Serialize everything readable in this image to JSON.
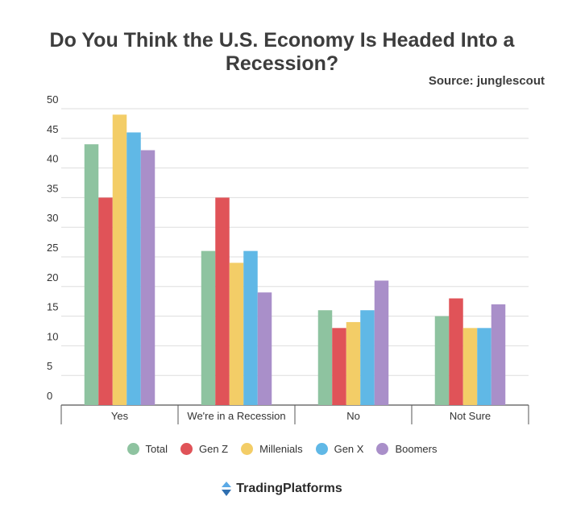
{
  "title": "Do You Think the U.S. Economy Is Headed Into a Recession?",
  "source": "Source: junglescout",
  "brand": {
    "name": "TradingPlatforms",
    "icon": "tradingplatforms-logo-icon"
  },
  "chart_data": {
    "type": "bar",
    "title": "Do You Think the U.S. Economy Is Headed Into a Recession?",
    "xlabel": "",
    "ylabel": "",
    "ylim": [
      0,
      50
    ],
    "yticks": [
      0,
      5,
      10,
      15,
      20,
      25,
      30,
      35,
      40,
      45,
      50
    ],
    "grid": true,
    "legend": "bottom",
    "categories": [
      "Yes",
      "We're in a Recession",
      "No",
      "Not Sure"
    ],
    "series": [
      {
        "name": "Total",
        "color": "#8ec3a0",
        "values": [
          44,
          26,
          16,
          15
        ]
      },
      {
        "name": "Gen Z",
        "color": "#e05358",
        "values": [
          35,
          35,
          13,
          18
        ]
      },
      {
        "name": "Millenials",
        "color": "#f3cd67",
        "values": [
          49,
          24,
          14,
          13
        ]
      },
      {
        "name": "Gen X",
        "color": "#60b8e6",
        "values": [
          46,
          26,
          16,
          13
        ]
      },
      {
        "name": "Boomers",
        "color": "#a98fc9",
        "values": [
          43,
          19,
          21,
          17
        ]
      }
    ]
  }
}
